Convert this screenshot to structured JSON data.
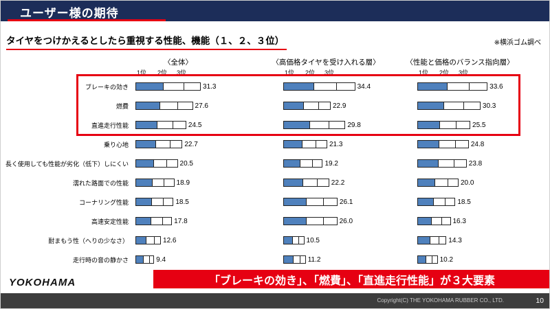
{
  "header": {
    "title": "ユーザー様の期待"
  },
  "subtitle": "タイヤをつけかえるとしたら重視する性能、機能（１、２、３位）",
  "survey_note": "※横浜ゴム調べ",
  "key_message": "「ブレーキの効き」、「燃費」、「直進走行性能」が３大要素",
  "footer": {
    "logo": "YOKOHAMA",
    "copyright": "Copyright(C) THE YOKOHAMA RUBBER CO., LTD.",
    "page_number": "10"
  },
  "colors": {
    "header_navy": "#1c2d59",
    "accent_red": "#e60012",
    "bar_blue": "#4f81bd"
  },
  "chart_data": {
    "type": "bar",
    "orientation": "horizontal",
    "stacked": true,
    "title": "タイヤをつけかえるとしたら重視する性能、機能（１、２、３位）",
    "rank_labels": [
      "1位",
      "2位",
      "3位"
    ],
    "categories": [
      "ブレーキの効き",
      "燃費",
      "直進走行性能",
      "乗り心地",
      "長く使用しても性能が劣化（低下）しにくい",
      "濡れた路面での性能",
      "コーナリング性能",
      "高速安定性能",
      "耐まもう性（へりの少なさ）",
      "走行時の音の静かさ"
    ],
    "series": [
      {
        "name": "〈全体〉",
        "values": [
          31.3,
          27.6,
          24.5,
          22.7,
          20.5,
          18.9,
          18.5,
          17.8,
          12.6,
          9.4
        ]
      },
      {
        "name": "〈高価格タイヤを受け入れる層〉",
        "values": [
          34.4,
          22.9,
          29.8,
          21.3,
          19.2,
          22.2,
          26.1,
          26.0,
          10.5,
          11.2
        ]
      },
      {
        "name": "〈性能と価格のバランス指向層〉",
        "values": [
          33.6,
          30.3,
          25.5,
          24.8,
          23.8,
          20.0,
          18.5,
          16.3,
          14.3,
          10.2
        ]
      }
    ],
    "xlim": [
      0,
      40
    ],
    "grid": false,
    "value_labels": "end-of-bar, one decimal",
    "highlighted_categories": [
      "ブレーキの効き",
      "燃費",
      "直進走行性能"
    ],
    "segment_fractions": [
      0.42,
      0.32,
      0.26
    ],
    "bar_color": "#4f81bd"
  }
}
